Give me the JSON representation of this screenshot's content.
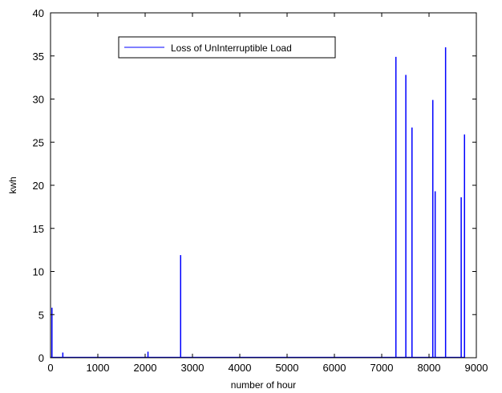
{
  "chart_data": {
    "type": "line",
    "title": "",
    "xlabel": "number of hour",
    "ylabel": "kwh",
    "xlim": [
      0,
      9000
    ],
    "ylim": [
      0,
      40
    ],
    "xticks": [
      0,
      1000,
      2000,
      3000,
      4000,
      5000,
      6000,
      7000,
      8000,
      9000
    ],
    "yticks": [
      0,
      5,
      10,
      15,
      20,
      25,
      30,
      35,
      40
    ],
    "grid": false,
    "legend_position": "top-left",
    "series": [
      {
        "name": "Loss of UnInterruptible Load",
        "color": "#0000ff",
        "baseline": 0,
        "x_start": 0,
        "x_end": 8760,
        "spikes": [
          {
            "x": 30,
            "y": 5.8
          },
          {
            "x": 260,
            "y": 0.6
          },
          {
            "x": 2060,
            "y": 0.7
          },
          {
            "x": 2750,
            "y": 11.9
          },
          {
            "x": 7300,
            "y": 34.9
          },
          {
            "x": 7510,
            "y": 32.8
          },
          {
            "x": 7640,
            "y": 26.7
          },
          {
            "x": 8080,
            "y": 29.9
          },
          {
            "x": 8130,
            "y": 19.3
          },
          {
            "x": 8350,
            "y": 36.0
          },
          {
            "x": 8680,
            "y": 18.6
          },
          {
            "x": 8750,
            "y": 25.9
          }
        ]
      }
    ]
  }
}
